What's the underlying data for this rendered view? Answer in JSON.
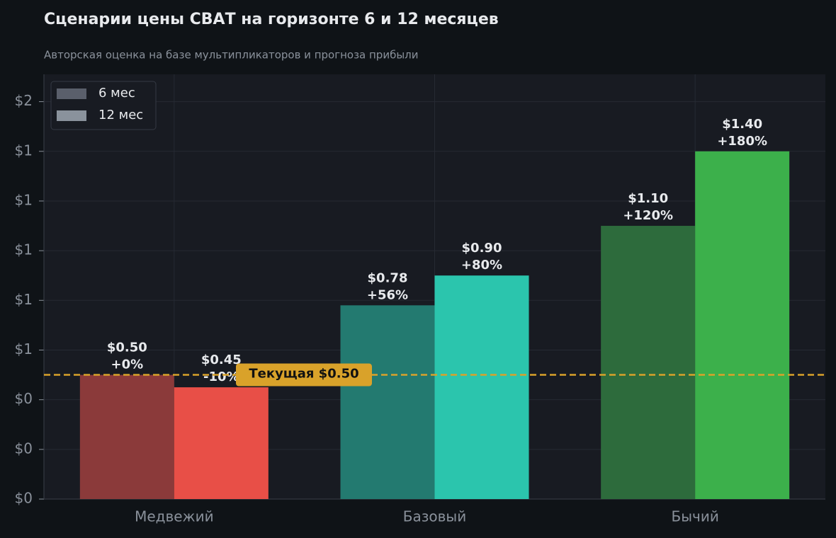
{
  "chart_data": {
    "type": "bar",
    "title": "Сценарии цены СВАТ на горизонте 6 и 12 месяцев",
    "subtitle": "Авторская оценка на базе мультипликаторов и прогноза прибыли",
    "categories": [
      "Медвежий",
      "Базовый",
      "Бычий"
    ],
    "series": [
      {
        "name": "6 мес",
        "color": "#5a5f6b",
        "bar_colors": [
          "#8b3a3a",
          "#237a70",
          "#2d6b3c"
        ],
        "values": [
          0.5,
          0.78,
          1.1
        ],
        "value_labels": [
          "$0.50",
          "$0.78",
          "$1.10"
        ],
        "change_labels": [
          "+0%",
          "+56%",
          "+120%"
        ]
      },
      {
        "name": "12 мес",
        "color": "#8a929c",
        "bar_colors": [
          "#e84f47",
          "#2bc5ad",
          "#3cb04b"
        ],
        "values": [
          0.45,
          0.9,
          1.4
        ],
        "value_labels": [
          "$0.45",
          "$0.90",
          "$1.40"
        ],
        "change_labels": [
          "-10%",
          "+80%",
          "+180%"
        ]
      }
    ],
    "ylim": [
      0,
      1.71
    ],
    "yticks": [
      {
        "value": 0,
        "label": "$0"
      },
      {
        "value": 0.2,
        "label": "$0"
      },
      {
        "value": 0.4,
        "label": "$0"
      },
      {
        "value": 0.6,
        "label": "$1"
      },
      {
        "value": 0.8,
        "label": "$1"
      },
      {
        "value": 1.0,
        "label": "$1"
      },
      {
        "value": 1.2,
        "label": "$1"
      },
      {
        "value": 1.4,
        "label": "$1"
      },
      {
        "value": 1.6,
        "label": "$2"
      }
    ],
    "grid": true,
    "legend": "upper left",
    "reference_line": {
      "value": 0.5,
      "label": "Текущая $0.50",
      "color": "#d9a22a"
    }
  }
}
